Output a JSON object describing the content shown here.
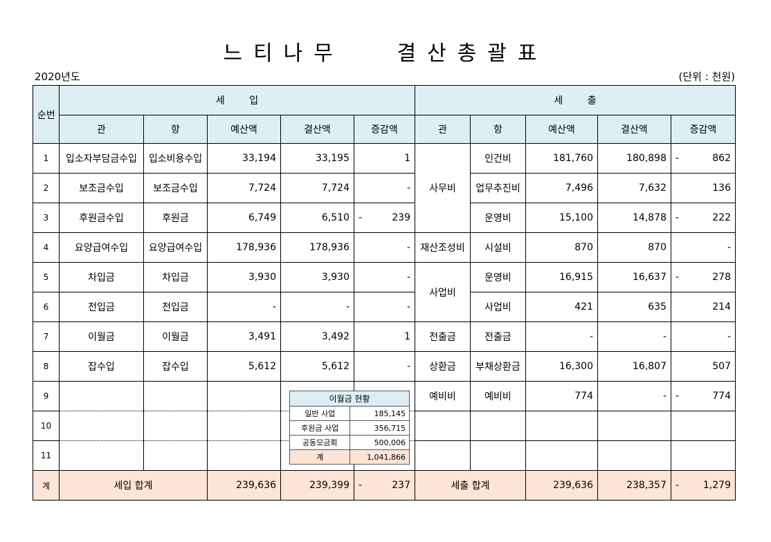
{
  "title": "느티나무   결산총괄표",
  "year": "2020년도",
  "unit": "(단위 : 천원)",
  "headers": {
    "seq": "순번",
    "income": "세        입",
    "expense": "세        출",
    "gwan": "관",
    "hang": "항",
    "budget": "예산액",
    "settled": "결산액",
    "diff": "증감액"
  },
  "income_rows": [
    {
      "seq": "1",
      "gwan": "입소자부담금수입",
      "hang": "입소비용수입",
      "budget": "33,194",
      "settled": "33,195",
      "diff_sign": "",
      "diff": "1"
    },
    {
      "seq": "2",
      "gwan": "보조금수입",
      "hang": "보조금수입",
      "budget": "7,724",
      "settled": "7,724",
      "diff_sign": "",
      "diff": "-"
    },
    {
      "seq": "3",
      "gwan": "후원금수입",
      "hang": "후원금",
      "budget": "6,749",
      "settled": "6,510",
      "diff_sign": "-",
      "diff": "239"
    },
    {
      "seq": "4",
      "gwan": "요양급여수입",
      "hang": "요양급여수입",
      "budget": "178,936",
      "settled": "178,936",
      "diff_sign": "",
      "diff": "-"
    },
    {
      "seq": "5",
      "gwan": "차입금",
      "hang": "차입금",
      "budget": "3,930",
      "settled": "3,930",
      "diff_sign": "",
      "diff": "-"
    },
    {
      "seq": "6",
      "gwan": "전입금",
      "hang": "전입금",
      "budget": "-",
      "settled": "-",
      "diff_sign": "",
      "diff": "-"
    },
    {
      "seq": "7",
      "gwan": "이월금",
      "hang": "이월금",
      "budget": "3,491",
      "settled": "3,492",
      "diff_sign": "",
      "diff": "1"
    },
    {
      "seq": "8",
      "gwan": "잡수입",
      "hang": "잡수입",
      "budget": "5,612",
      "settled": "5,612",
      "diff_sign": "",
      "diff": "-"
    },
    {
      "seq": "9"
    },
    {
      "seq": "10"
    },
    {
      "seq": "11"
    }
  ],
  "expense_groups": {
    "samu": "사무비",
    "jaesan": "재산조성비",
    "saeop": "사업비",
    "jeonchul": "전출금",
    "sanghwan": "상환금",
    "yebi": "예비비"
  },
  "expense_rows": [
    {
      "hang": "인건비",
      "budget": "181,760",
      "settled": "180,898",
      "diff_sign": "-",
      "diff": "862"
    },
    {
      "hang": "업무추진비",
      "budget": "7,496",
      "settled": "7,632",
      "diff_sign": "",
      "diff": "136"
    },
    {
      "hang": "운영비",
      "budget": "15,100",
      "settled": "14,878",
      "diff_sign": "-",
      "diff": "222"
    },
    {
      "hang": "시설비",
      "budget": "870",
      "settled": "870",
      "diff_sign": "",
      "diff": "-"
    },
    {
      "hang": "운영비",
      "budget": "16,915",
      "settled": "16,637",
      "diff_sign": "-",
      "diff": "278"
    },
    {
      "hang": "사업비",
      "budget": "421",
      "settled": "635",
      "diff_sign": "",
      "diff": "214"
    },
    {
      "hang": "전출금",
      "budget": "-",
      "settled": "-",
      "diff_sign": "",
      "diff": "-"
    },
    {
      "hang": "부채상환금",
      "budget": "16,300",
      "settled": "16,807",
      "diff_sign": "",
      "diff": "507"
    },
    {
      "hang": "예비비",
      "budget": "774",
      "settled": "-",
      "diff_sign": "-",
      "diff": "774"
    }
  ],
  "totals": {
    "seq": "계",
    "income_label": "세입 합계",
    "income_budget": "239,636",
    "income_settled": "239,399",
    "income_diff_sign": "-",
    "income_diff": "237",
    "expense_label": "세출 합계",
    "expense_budget": "239,636",
    "expense_settled": "238,357",
    "expense_diff_sign": "-",
    "expense_diff": "1,279"
  },
  "carryover_box": {
    "title": "이월금 현황",
    "rows": [
      {
        "label": "일반 사업",
        "value": "185,145"
      },
      {
        "label": "후원금 사업",
        "value": "356,715"
      },
      {
        "label": "공동모금회",
        "value": "500,006"
      }
    ],
    "total_label": "계",
    "total_value": "1,041,866"
  }
}
